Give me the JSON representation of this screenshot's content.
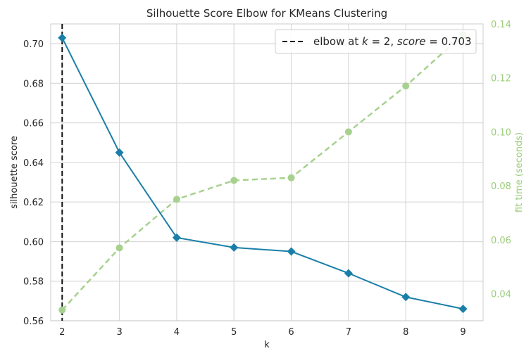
{
  "chart_data": {
    "type": "line",
    "title": "Silhouette Score Elbow for KMeans Clustering",
    "xlabel": "k",
    "ylabel": "silhouette score",
    "y2label": "fit time (seconds)",
    "x": [
      2,
      3,
      4,
      5,
      6,
      7,
      8,
      9
    ],
    "xlim": [
      1.8,
      9.35
    ],
    "ylim": [
      0.56,
      0.71
    ],
    "y2lim": [
      0.03,
      0.14
    ],
    "xticks": [
      "2",
      "3",
      "4",
      "5",
      "6",
      "7",
      "8",
      "9"
    ],
    "yticks": [
      "0.56",
      "0.58",
      "0.60",
      "0.62",
      "0.64",
      "0.66",
      "0.68",
      "0.70"
    ],
    "y2ticks": [
      "0.04",
      "0.06",
      "0.08",
      "0.10",
      "0.12",
      "0.14"
    ],
    "series": [
      {
        "name": "silhouette score",
        "axis": "left",
        "style": "solid",
        "marker": "diamond",
        "color": "#1a7fa8",
        "values": [
          0.703,
          0.645,
          0.602,
          0.597,
          0.595,
          0.584,
          0.572,
          0.566
        ]
      },
      {
        "name": "fit time (seconds)",
        "axis": "right",
        "style": "dashed",
        "marker": "circle",
        "color": "#a7d18f",
        "values": [
          0.034,
          0.057,
          0.075,
          0.082,
          0.083,
          0.1,
          0.117,
          0.136
        ]
      }
    ],
    "elbow": {
      "k": 2,
      "score": 0.703
    },
    "legend": {
      "position": "top-right",
      "prefix": "elbow at ",
      "k_sym": "k",
      "eq1": " = 2, ",
      "score_sym": "score",
      "eq2": " = 0.703"
    },
    "grid": true,
    "colors": {
      "grid": "#d9d9d9",
      "frame": "#cccccc",
      "elbow": "#111111",
      "right_axis_text": "#9acd7a"
    }
  }
}
